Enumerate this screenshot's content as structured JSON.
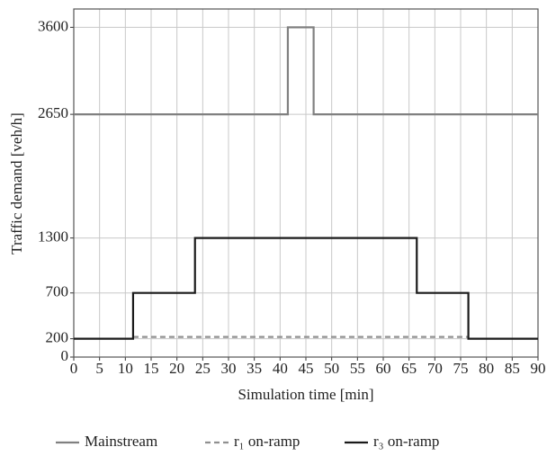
{
  "chart_data": {
    "type": "line",
    "x_label": "Simulation time [min]",
    "y_label": "Traffic demand [veh/h]",
    "xlim": [
      0,
      90
    ],
    "xticks": [
      0,
      5,
      10,
      15,
      20,
      25,
      30,
      35,
      40,
      45,
      50,
      55,
      60,
      65,
      70,
      75,
      80,
      85,
      90
    ],
    "ylim": [
      0,
      3800
    ],
    "yticks": [
      0,
      200,
      700,
      1300,
      2650,
      3600
    ],
    "grid": true,
    "legend": "bottom",
    "series": [
      {
        "name": "Mainstream",
        "color": "#808080",
        "dash": false,
        "x": [
          0,
          41.5,
          41.5,
          46.5,
          46.5,
          90
        ],
        "values": [
          2650,
          2650,
          3600,
          3600,
          2650,
          2650
        ]
      },
      {
        "name": "r₁ on-ramp",
        "color": "#909090",
        "dash": true,
        "x": [
          11.5,
          76.5
        ],
        "values": [
          220,
          220
        ]
      },
      {
        "name": "r₃ on-ramp",
        "color": "#1a1a1a",
        "dash": false,
        "x": [
          0,
          11.5,
          11.5,
          23.5,
          23.5,
          66.5,
          66.5,
          76.5,
          76.5,
          90
        ],
        "values": [
          200,
          200,
          700,
          700,
          1300,
          1300,
          700,
          700,
          200,
          200
        ]
      }
    ]
  }
}
